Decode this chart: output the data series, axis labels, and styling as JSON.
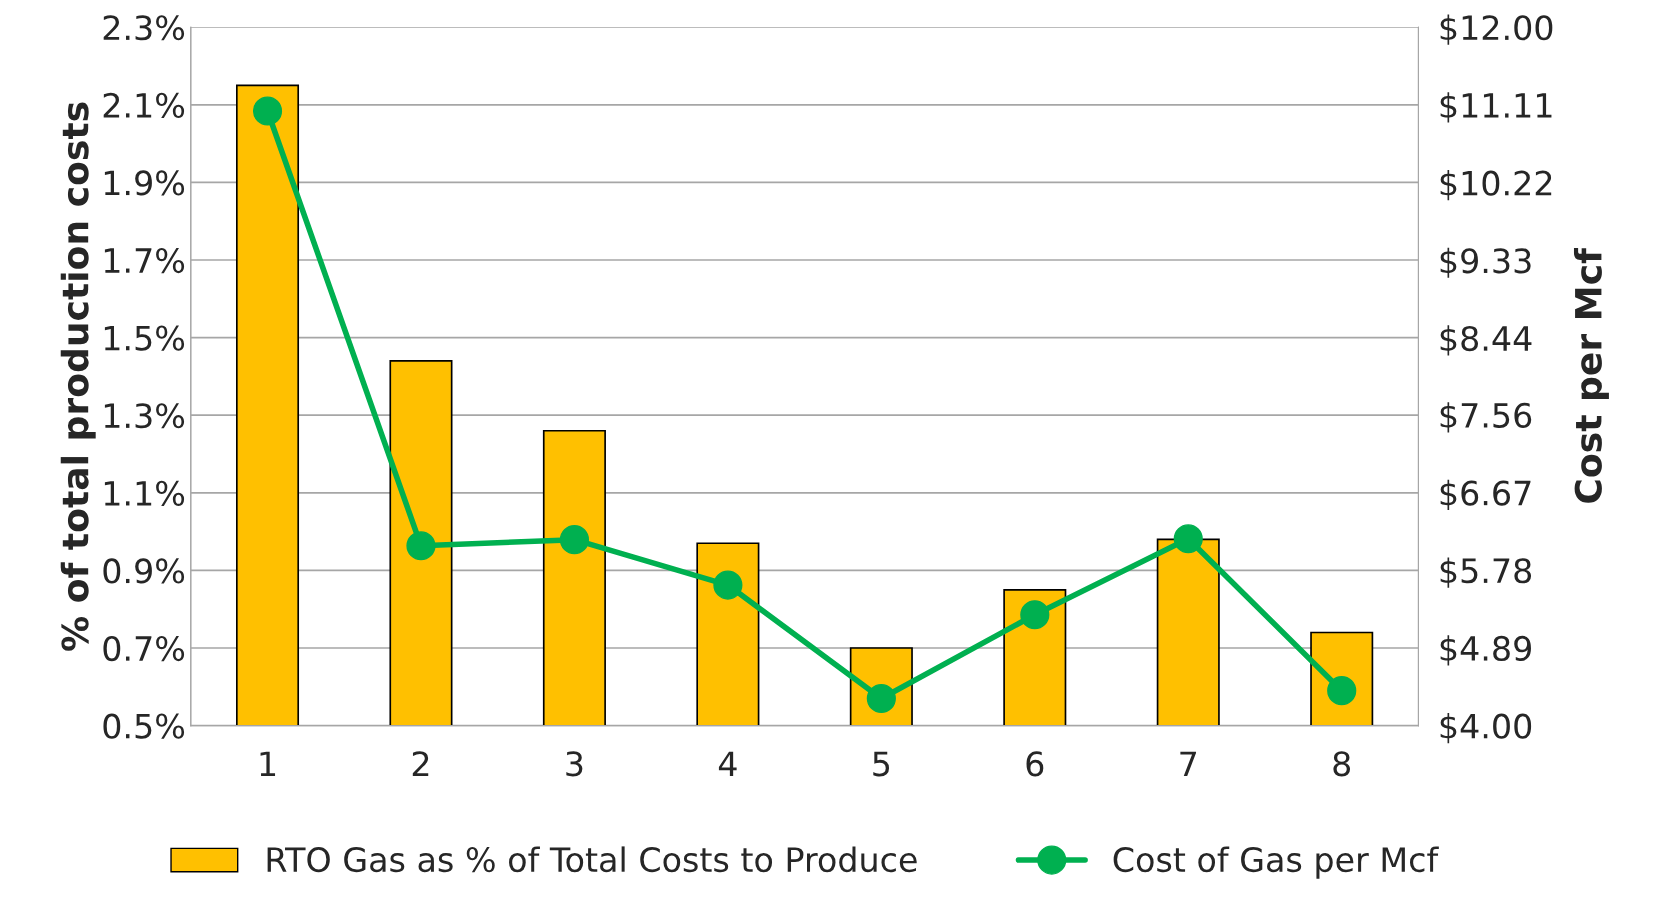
{
  "chart_data": {
    "type": "bar",
    "categories": [
      "1",
      "2",
      "3",
      "4",
      "5",
      "6",
      "7",
      "8"
    ],
    "ylabel": "% of total production costs",
    "y2label": "Cost per Mcf",
    "series": [
      {
        "name": "RTO Gas as % of Total Costs to Produce",
        "color": "#ffc000",
        "values": [
          2.15,
          1.44,
          1.26,
          0.97,
          0.7,
          0.85,
          0.98,
          0.74
        ]
      },
      {
        "name": "Cost of Gas per Mcf",
        "type": "line",
        "axis": "y2",
        "color": "#00b050",
        "marker": "circle",
        "values": [
          11.04,
          6.06,
          6.13,
          5.61,
          4.31,
          5.27,
          6.14,
          4.4
        ]
      }
    ],
    "ylim": [
      0.5,
      2.3
    ],
    "yticks": [
      {
        "value": 0.5,
        "label": "0.5%"
      },
      {
        "value": 0.7,
        "label": "0.7%"
      },
      {
        "value": 0.9,
        "label": "0.9%"
      },
      {
        "value": 1.1,
        "label": "1.1%"
      },
      {
        "value": 1.3,
        "label": "1.3%"
      },
      {
        "value": 1.5,
        "label": "1.5%"
      },
      {
        "value": 1.7,
        "label": "1.7%"
      },
      {
        "value": 1.9,
        "label": "1.9%"
      },
      {
        "value": 2.1,
        "label": "2.1%"
      },
      {
        "value": 2.3,
        "label": "2.3%"
      }
    ],
    "y2lim": [
      4.0,
      12.0
    ],
    "y2ticks": [
      {
        "value": 4.0,
        "label": "$4.00"
      },
      {
        "value": 4.89,
        "label": "$4.89"
      },
      {
        "value": 5.78,
        "label": "$5.78"
      },
      {
        "value": 6.67,
        "label": "$6.67"
      },
      {
        "value": 7.56,
        "label": "$7.56"
      },
      {
        "value": 8.44,
        "label": "$8.44"
      },
      {
        "value": 9.33,
        "label": "$9.33"
      },
      {
        "value": 10.22,
        "label": "$10.22"
      },
      {
        "value": 11.11,
        "label": "$11.11"
      },
      {
        "value": 12.0,
        "label": "$12.00"
      }
    ],
    "grid": "y",
    "legend": "bottom"
  }
}
